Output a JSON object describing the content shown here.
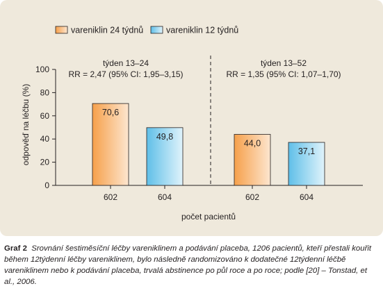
{
  "chart_data": {
    "type": "bar",
    "ylabel": "odpověď na léčbu (%)",
    "xlabel": "počet pacientů",
    "ylim": [
      0,
      100
    ],
    "yticks": [
      0,
      20,
      40,
      60,
      80,
      100
    ],
    "legend_position": "top-left",
    "legend": [
      {
        "name": "vareniklin 24 týdnů",
        "colors": [
          "#f6a04b",
          "#fde6cf"
        ]
      },
      {
        "name": "vareniklin 12 týdnů",
        "colors": [
          "#5fbfe8",
          "#e0f3fb"
        ]
      }
    ],
    "panels": [
      {
        "title": "týden 13–24",
        "stat": "RR = 2,47 (95% CI: 1,95–3,15)",
        "bars": [
          {
            "series": "vareniklin 24 týdnů",
            "value": 70.6,
            "value_label": "70,6",
            "n_label": "602"
          },
          {
            "series": "vareniklin 12 týdnů",
            "value": 49.8,
            "value_label": "49,8",
            "n_label": "604"
          }
        ]
      },
      {
        "title": "týden 13–52",
        "stat": "RR = 1,35 (95% CI: 1,07–1,70)",
        "bars": [
          {
            "series": "vareniklin 24 týdnů",
            "value": 44.0,
            "value_label": "44,0",
            "n_label": "602"
          },
          {
            "series": "vareniklin 12 týdnů",
            "value": 37.1,
            "value_label": "37,1",
            "n_label": "604"
          }
        ]
      }
    ]
  },
  "caption": {
    "label": "Graf 2",
    "text": "Srovnání šestiměsíční léčby vareniklinem a podávání placeba, 1206 pacientů, kteří přestali kouřit během 12týdenní léčby vareniklinem, bylo následně randomizováno k dodatečné 12týdenní léčbě vareniklinem nebo k podávání placeba, trvalá abstinence po půl roce a po roce; podle [20] – Tonstad, et al., 2006."
  }
}
